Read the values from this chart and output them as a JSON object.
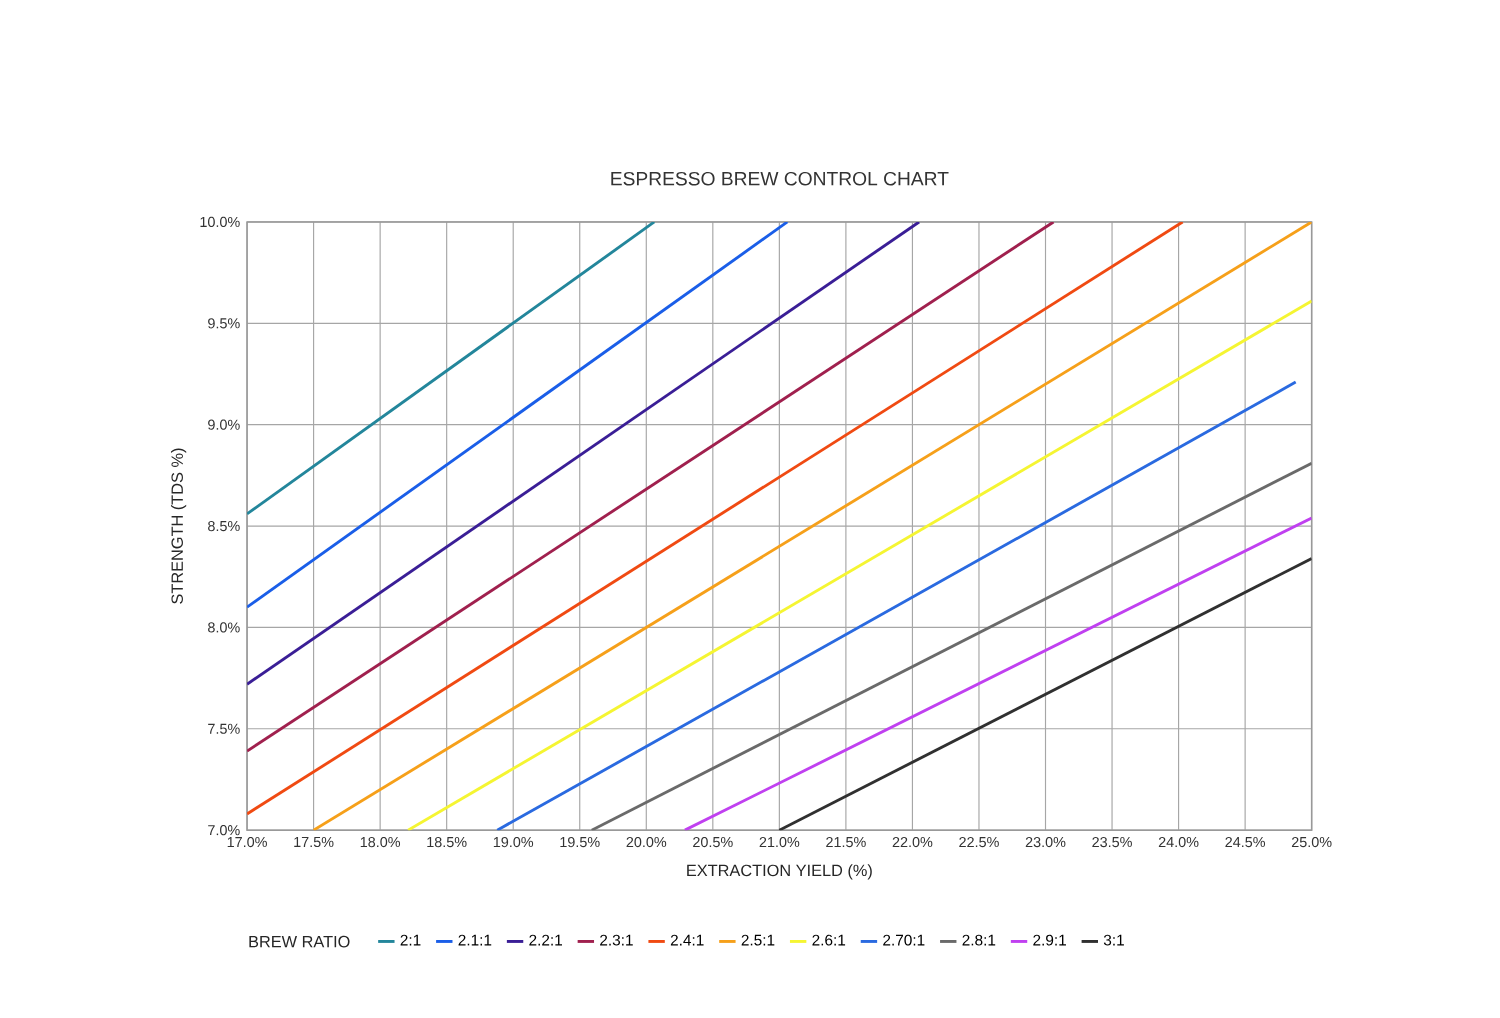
{
  "chart_data": {
    "type": "line",
    "title": "ESPRESSO BREW CONTROL CHART",
    "xlabel": "EXTRACTION YIELD (%)",
    "ylabel": "STRENGTH (TDS %)",
    "legend_title": "BREW RATIO",
    "xlim": [
      17.0,
      25.0
    ],
    "ylim": [
      7.0,
      10.0
    ],
    "xticks": [
      {
        "value": 17.0,
        "label": "17.0%"
      },
      {
        "value": 17.5,
        "label": "17.5%"
      },
      {
        "value": 18.0,
        "label": "18.0%"
      },
      {
        "value": 18.5,
        "label": "18.5%"
      },
      {
        "value": 19.0,
        "label": "19.0%"
      },
      {
        "value": 19.5,
        "label": "19.5%"
      },
      {
        "value": 20.0,
        "label": "20.0%"
      },
      {
        "value": 20.5,
        "label": "20.5%"
      },
      {
        "value": 21.0,
        "label": "21.0%"
      },
      {
        "value": 21.5,
        "label": "21.5%"
      },
      {
        "value": 22.0,
        "label": "22.0%"
      },
      {
        "value": 22.5,
        "label": "22.5%"
      },
      {
        "value": 23.0,
        "label": "23.0%"
      },
      {
        "value": 23.5,
        "label": "23.5%"
      },
      {
        "value": 24.0,
        "label": "24.0%"
      },
      {
        "value": 24.5,
        "label": "24.5%"
      },
      {
        "value": 25.0,
        "label": "25.0%"
      }
    ],
    "yticks": [
      {
        "value": 7.0,
        "label": "7.0%"
      },
      {
        "value": 7.5,
        "label": "7.5%"
      },
      {
        "value": 8.0,
        "label": "8.0%"
      },
      {
        "value": 8.5,
        "label": "8.5%"
      },
      {
        "value": 9.0,
        "label": "9.0%"
      },
      {
        "value": 9.5,
        "label": "9.5%"
      },
      {
        "value": 10.0,
        "label": "10.0%"
      }
    ],
    "grid": true,
    "legend": "bottom",
    "marker": "none",
    "line_style": "solid",
    "series": [
      {
        "name": "2:1",
        "color": "#23869b",
        "x": [
          17.0,
          20.06
        ],
        "values": [
          8.56,
          10.0
        ]
      },
      {
        "name": "2.1:1",
        "color": "#1a5ee8",
        "x": [
          17.0,
          21.06
        ],
        "values": [
          8.1,
          10.0
        ]
      },
      {
        "name": "2.2:1",
        "color": "#3a1e96",
        "x": [
          17.0,
          22.05
        ],
        "values": [
          7.72,
          10.0
        ]
      },
      {
        "name": "2.3:1",
        "color": "#a0204e",
        "x": [
          17.0,
          23.06
        ],
        "values": [
          7.39,
          10.0
        ]
      },
      {
        "name": "2.4:1",
        "color": "#f04a12",
        "x": [
          17.0,
          24.03
        ],
        "values": [
          7.08,
          10.0
        ]
      },
      {
        "name": "2.5:1",
        "color": "#f6a01a",
        "x": [
          17.5,
          25.0
        ],
        "values": [
          7.0,
          10.0
        ]
      },
      {
        "name": "2.6:1",
        "color": "#f5f532",
        "x": [
          18.21,
          25.0
        ],
        "values": [
          7.0,
          9.61
        ]
      },
      {
        "name": "2.70:1",
        "color": "#2a6ae0",
        "x": [
          18.88,
          24.88
        ],
        "values": [
          7.0,
          9.21
        ]
      },
      {
        "name": "2.8:1",
        "color": "#6a6a6a",
        "x": [
          19.59,
          25.0
        ],
        "values": [
          7.0,
          8.81
        ]
      },
      {
        "name": "2.9:1",
        "color": "#c040f0",
        "x": [
          20.29,
          25.0
        ],
        "values": [
          7.0,
          8.54
        ]
      },
      {
        "name": "3:1",
        "color": "#303030",
        "x": [
          21.0,
          25.0
        ],
        "values": [
          7.0,
          8.34
        ]
      }
    ]
  }
}
